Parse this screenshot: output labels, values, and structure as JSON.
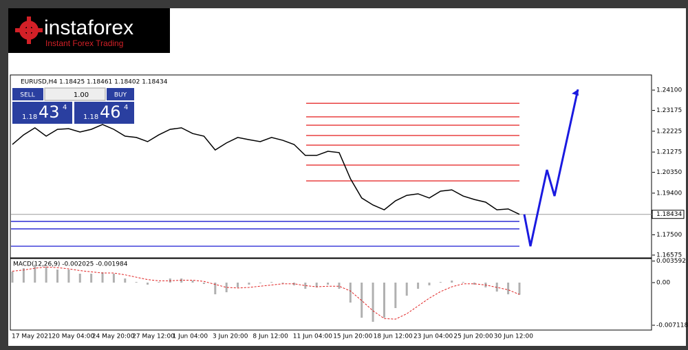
{
  "logo": {
    "name": "instaforex",
    "tagline": "Instant Forex Trading"
  },
  "trade_panel": {
    "sell": "SELL",
    "lot": "1.00",
    "buy": "BUY",
    "bid": {
      "big": "1.18",
      "pips": "43",
      "point": "4"
    },
    "ask": {
      "big": "1.18",
      "pips": "46",
      "point": "4"
    }
  },
  "chart_data": [
    {
      "type": "line",
      "title": "EURUSD,H4  1.18425 1.18461 1.18402 1.18434",
      "color": "#000000",
      "values": [
        1.2162,
        1.2206,
        1.2238,
        1.22,
        1.2231,
        1.2234,
        1.2219,
        1.2231,
        1.2253,
        1.2231,
        1.22,
        1.2194,
        1.2175,
        1.2206,
        1.2231,
        1.2238,
        1.2212,
        1.22,
        1.2137,
        1.2169,
        1.2194,
        1.2184,
        1.2175,
        1.2194,
        1.2181,
        1.2162,
        1.2112,
        1.2112,
        1.2131,
        1.2125,
        1.2006,
        1.1918,
        1.1886,
        1.1864,
        1.1905,
        1.193,
        1.1937,
        1.1918,
        1.1949,
        1.1955,
        1.1927,
        1.1911,
        1.1899,
        1.1864,
        1.1868,
        1.18434
      ],
      "ylim": [
        1.1648,
        1.2476
      ],
      "yticks": [
        {
          "value": 1.241,
          "label": "1.24100"
        },
        {
          "value": 1.23175,
          "label": "1.23175"
        },
        {
          "value": 1.22225,
          "label": "1.22225"
        },
        {
          "value": 1.21275,
          "label": "1.21275"
        },
        {
          "value": 1.2035,
          "label": "1.20350"
        },
        {
          "value": 1.194,
          "label": "1.19400"
        },
        {
          "value": 1.175,
          "label": "1.17500"
        },
        {
          "value": 1.16575,
          "label": "1.16575"
        }
      ],
      "current_price": 1.18434,
      "resistance_levels": {
        "color": "#e00000",
        "values": [
          1.235,
          1.2288,
          1.225,
          1.2203,
          1.2159,
          1.2068,
          1.1996
        ]
      },
      "support_levels": {
        "color": "#0000cc",
        "values": [
          1.1811,
          1.1777,
          1.1698
        ]
      },
      "forecast": {
        "color": "#1a1ae0",
        "values": [
          1.1843,
          1.1698,
          1.2046,
          1.1927,
          1.2413
        ]
      },
      "x_labels": [
        "17 May 2021",
        "20 May 04:00",
        "24 May 20:00",
        "27 May 12:00",
        "1 Jun 04:00",
        "3 Jun 20:00",
        "8 Jun 12:00",
        "11 Jun 04:00",
        "15 Jun 20:00",
        "18 Jun 12:00",
        "23 Jun 04:00",
        "25 Jun 20:00",
        "30 Jun 12:00"
      ]
    },
    {
      "type": "bar",
      "title": "MACD(12,26,9) -0.002025 -0.001984",
      "color": "#b0b0b0",
      "values": [
        0.00184,
        0.00241,
        0.00299,
        0.00264,
        0.00218,
        0.00218,
        0.00149,
        0.00149,
        0.00172,
        0.00149,
        0.00069,
        0.00011,
        -0.00034,
        0.00011,
        0.00069,
        0.00069,
        0.00034,
        -0.00023,
        -0.00195,
        -0.00161,
        -0.0008,
        -0.00034,
        -0.00011,
        0.00011,
        -0.00011,
        -0.00046,
        -0.00103,
        -0.0008,
        -0.00034,
        -0.00103,
        -0.00333,
        -0.00586,
        -0.00654,
        -0.00586,
        -0.00425,
        -0.00218,
        -0.00103,
        -0.00046,
        0.00011,
        0.00034,
        0.00011,
        -0.00034,
        -0.0008,
        -0.00149,
        -0.00195,
        -0.002025
      ],
      "signal": {
        "color": "#e02020",
        "values": [
          0.0019,
          0.0021,
          0.0024,
          0.0026,
          0.0025,
          0.0023,
          0.002,
          0.0018,
          0.0016,
          0.0016,
          0.0013,
          0.0009,
          0.0005,
          0.0003,
          0.0003,
          0.0004,
          0.0004,
          0.0002,
          -0.0003,
          -0.0008,
          -0.0009,
          -0.0008,
          -0.0006,
          -0.0004,
          -0.0002,
          -0.0002,
          -0.0005,
          -0.0007,
          -0.0006,
          -0.0006,
          -0.0014,
          -0.003,
          -0.0047,
          -0.006,
          -0.0061,
          -0.0052,
          -0.0039,
          -0.0026,
          -0.0015,
          -0.0007,
          -0.0002,
          -0.0002,
          -0.0004,
          -0.0008,
          -0.0012,
          -0.001984
        ]
      },
      "ylim": [
        -0.00792,
        0.0039
      ],
      "yticks": [
        0.003592,
        {
          "value": 0,
          "label": "0.00"
        },
        -0.007118
      ]
    }
  ]
}
